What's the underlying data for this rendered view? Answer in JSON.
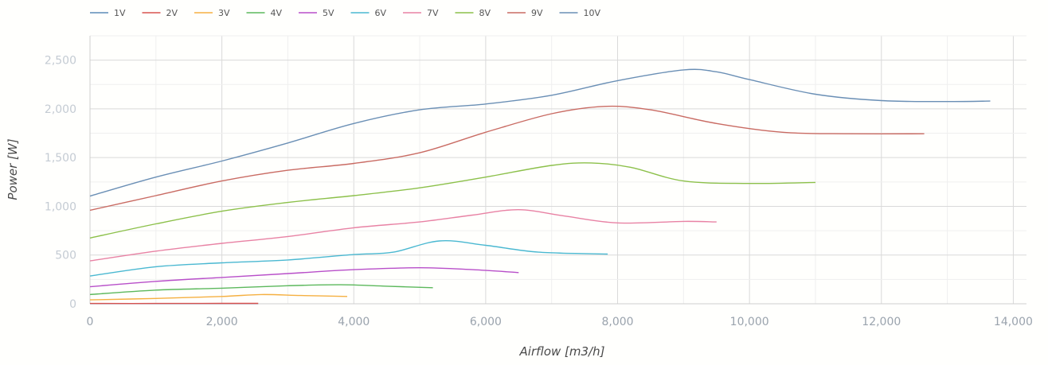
{
  "chart_data": {
    "type": "line",
    "xlabel": "Airflow [m3/h]",
    "ylabel": "Power [W]",
    "xlim": [
      0,
      14200
    ],
    "ylim": [
      0,
      2750
    ],
    "x_ticks": [
      0,
      2000,
      4000,
      6000,
      8000,
      10000,
      12000,
      14000
    ],
    "x_tick_labels": [
      "0",
      "2,000",
      "4,000",
      "6,000",
      "8,000",
      "10,000",
      "12,000",
      "14,000"
    ],
    "y_ticks": [
      0,
      500,
      1000,
      1500,
      2000,
      2500
    ],
    "y_tick_labels": [
      "0",
      "500",
      "1,000",
      "1,500",
      "2,000",
      "2,500"
    ],
    "grid": true,
    "legend_position": "top-left",
    "series": [
      {
        "name": "1V",
        "color": "#5b8bb8",
        "points": [
          [
            0,
            2
          ],
          [
            2550,
            2
          ]
        ]
      },
      {
        "name": "2V",
        "color": "#d9534f",
        "points": [
          [
            0,
            3
          ],
          [
            1000,
            3
          ],
          [
            2000,
            4
          ],
          [
            2550,
            4
          ]
        ]
      },
      {
        "name": "3V",
        "color": "#f5b041",
        "points": [
          [
            0,
            40
          ],
          [
            1000,
            55
          ],
          [
            2000,
            75
          ],
          [
            2600,
            95
          ],
          [
            3200,
            85
          ],
          [
            3900,
            75
          ]
        ]
      },
      {
        "name": "4V",
        "color": "#5cb85c",
        "points": [
          [
            0,
            95
          ],
          [
            1000,
            140
          ],
          [
            2000,
            160
          ],
          [
            3000,
            185
          ],
          [
            3800,
            195
          ],
          [
            4500,
            180
          ],
          [
            5200,
            165
          ]
        ]
      },
      {
        "name": "5V",
        "color": "#b84fc9",
        "points": [
          [
            0,
            175
          ],
          [
            1000,
            230
          ],
          [
            2000,
            270
          ],
          [
            3000,
            310
          ],
          [
            4000,
            350
          ],
          [
            5000,
            370
          ],
          [
            5800,
            350
          ],
          [
            6500,
            320
          ]
        ]
      },
      {
        "name": "6V",
        "color": "#4ab8d1",
        "points": [
          [
            0,
            285
          ],
          [
            1000,
            380
          ],
          [
            2000,
            420
          ],
          [
            3000,
            450
          ],
          [
            4000,
            505
          ],
          [
            4600,
            530
          ],
          [
            5300,
            645
          ],
          [
            6000,
            600
          ],
          [
            6800,
            530
          ],
          [
            7850,
            510
          ]
        ]
      },
      {
        "name": "7V",
        "color": "#e882a4",
        "points": [
          [
            0,
            440
          ],
          [
            1000,
            540
          ],
          [
            2000,
            620
          ],
          [
            3000,
            690
          ],
          [
            4000,
            780
          ],
          [
            5000,
            840
          ],
          [
            5800,
            910
          ],
          [
            6500,
            965
          ],
          [
            7200,
            900
          ],
          [
            8000,
            830
          ],
          [
            9000,
            845
          ],
          [
            9500,
            840
          ]
        ]
      },
      {
        "name": "8V",
        "color": "#8cc04a",
        "points": [
          [
            0,
            675
          ],
          [
            1000,
            820
          ],
          [
            2000,
            950
          ],
          [
            3000,
            1040
          ],
          [
            4000,
            1110
          ],
          [
            5000,
            1190
          ],
          [
            6000,
            1300
          ],
          [
            7000,
            1420
          ],
          [
            7600,
            1445
          ],
          [
            8200,
            1400
          ],
          [
            9000,
            1260
          ],
          [
            10000,
            1235
          ],
          [
            11000,
            1245
          ]
        ]
      },
      {
        "name": "9V",
        "color": "#c96b63",
        "points": [
          [
            0,
            960
          ],
          [
            1000,
            1110
          ],
          [
            2000,
            1260
          ],
          [
            3000,
            1370
          ],
          [
            4000,
            1440
          ],
          [
            5000,
            1550
          ],
          [
            6000,
            1760
          ],
          [
            7000,
            1950
          ],
          [
            7800,
            2025
          ],
          [
            8500,
            1990
          ],
          [
            9500,
            1850
          ],
          [
            10500,
            1760
          ],
          [
            11500,
            1745
          ],
          [
            12650,
            1745
          ]
        ]
      },
      {
        "name": "10V",
        "color": "#6a8fb5",
        "points": [
          [
            0,
            1105
          ],
          [
            1000,
            1300
          ],
          [
            2000,
            1465
          ],
          [
            3000,
            1650
          ],
          [
            4000,
            1850
          ],
          [
            5000,
            1990
          ],
          [
            6000,
            2050
          ],
          [
            7000,
            2140
          ],
          [
            8000,
            2290
          ],
          [
            9000,
            2400
          ],
          [
            9500,
            2380
          ],
          [
            10000,
            2300
          ],
          [
            11000,
            2150
          ],
          [
            12000,
            2085
          ],
          [
            13000,
            2075
          ],
          [
            13650,
            2080
          ]
        ]
      }
    ]
  }
}
